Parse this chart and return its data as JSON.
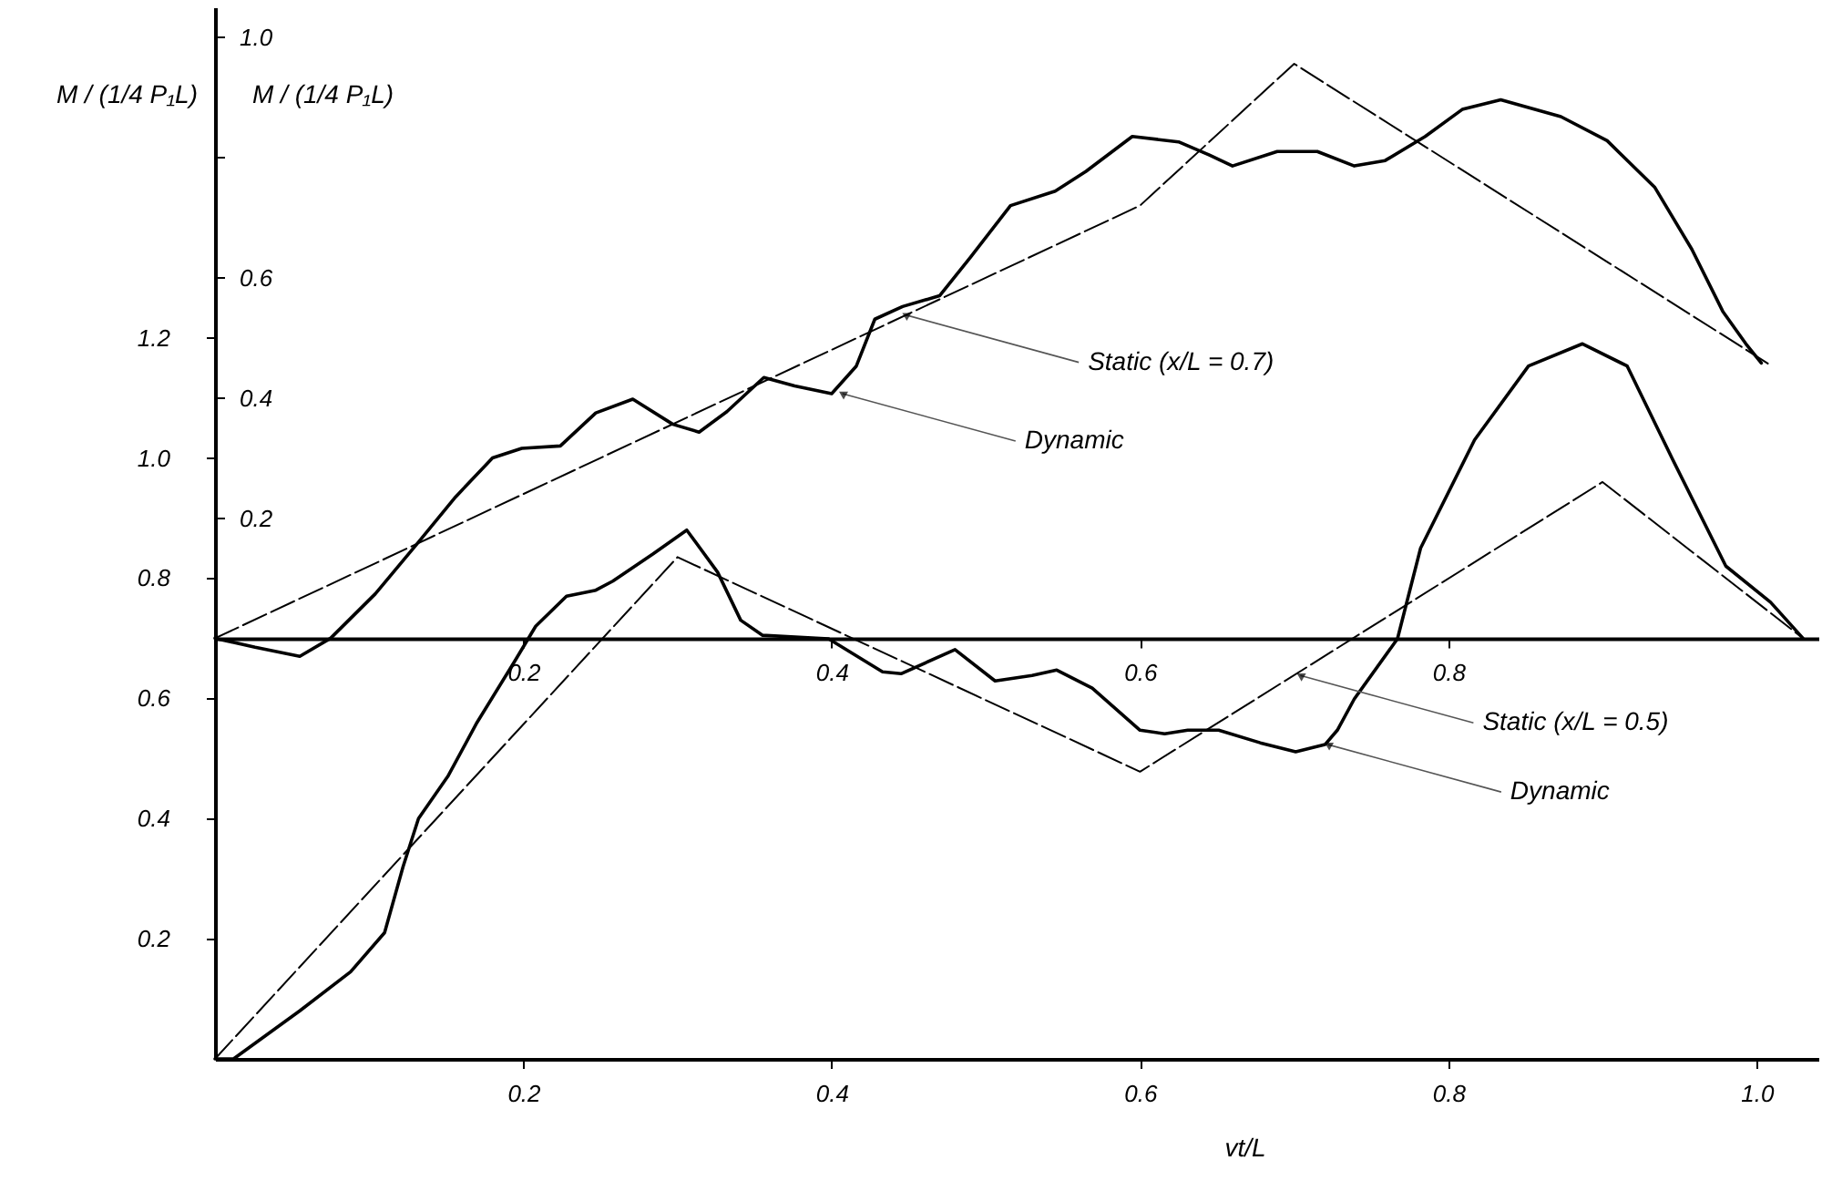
{
  "chart_data": {
    "type": "line",
    "xlabel": "vt/L",
    "ylabel": "M / (1/4 P₁L)",
    "y2label": "M / (1/4 P₁L)",
    "xlim": [
      0,
      1.04
    ],
    "xticks": [
      0.2,
      0.4,
      0.6,
      0.8,
      {
        "value": 1.0,
        "label": "1.0"
      }
    ],
    "x2lim": [
      0,
      1.04
    ],
    "x2ticks": [
      0.2,
      0.4,
      0.6,
      0.8
    ],
    "ylim": [
      0,
      1.75
    ],
    "yticks": [
      0.2,
      0.4,
      0.6,
      0.8,
      {
        "value": 1.0,
        "label": "1.0"
      },
      1.2
    ],
    "y2lim": [
      -0.7,
      1.05
    ],
    "y2ticks": [
      0.2,
      0.4,
      0.6,
      {
        "value": 0.8,
        "label": null
      },
      {
        "value": 1.0,
        "label": "1.0"
      }
    ],
    "grid": false,
    "legend": false,
    "marker": "none",
    "series": [
      {
        "color": "#000000",
        "line_style": "dashed",
        "x": [
          0,
          0.3,
          0.6,
          0.9,
          1.03
        ],
        "values": [
          0,
          0.835,
          0.478,
          0.96,
          0.7
        ]
      },
      {
        "color": "#000000",
        "line_style": "solid",
        "x": [
          0,
          0.012,
          0.055,
          0.088,
          0.11,
          0.122,
          0.132,
          0.151,
          0.17,
          0.194,
          0.208,
          0.228,
          0.247,
          0.258,
          0.284,
          0.306,
          0.326,
          0.341,
          0.355,
          0.398,
          0.433,
          0.445,
          0.48,
          0.506,
          0.53,
          0.546,
          0.569,
          0.6,
          0.616,
          0.631,
          0.651,
          0.678,
          0.701,
          0.72,
          0.728,
          0.739,
          0.767,
          0.782,
          0.817,
          0.852,
          0.887,
          0.916,
          0.945,
          0.98,
          1.009,
          1.03
        ],
        "values": [
          0,
          0,
          0.08,
          0.145,
          0.21,
          0.32,
          0.4,
          0.47,
          0.56,
          0.66,
          0.72,
          0.77,
          0.78,
          0.795,
          0.84,
          0.88,
          0.81,
          0.73,
          0.705,
          0.699,
          0.644,
          0.641,
          0.681,
          0.629,
          0.638,
          0.647,
          0.617,
          0.547,
          0.541,
          0.547,
          0.547,
          0.526,
          0.511,
          0.523,
          0.547,
          0.599,
          0.699,
          0.85,
          1.03,
          1.153,
          1.19,
          1.153,
          1.0,
          0.82,
          0.76,
          0.7
        ]
      },
      {
        "color": "#000000",
        "line_style": "dashed",
        "axis": "y2",
        "x": [
          0,
          0.6,
          0.7,
          1.008
        ],
        "values": [
          0,
          0.72,
          0.956,
          0.456
        ]
      },
      {
        "color": "#000000",
        "line_style": "solid",
        "axis": "y2",
        "x": [
          0,
          0.026,
          0.055,
          0.075,
          0.104,
          0.132,
          0.156,
          0.18,
          0.199,
          0.224,
          0.247,
          0.271,
          0.297,
          0.314,
          0.332,
          0.356,
          0.376,
          0.4,
          0.416,
          0.428,
          0.446,
          0.47,
          0.49,
          0.516,
          0.545,
          0.565,
          0.595,
          0.625,
          0.645,
          0.66,
          0.689,
          0.715,
          0.739,
          0.759,
          0.785,
          0.809,
          0.834,
          0.873,
          0.903,
          0.934,
          0.958,
          0.978,
          0.993,
          1.003
        ],
        "values": [
          0,
          -0.015,
          -0.03,
          0,
          0.074,
          0.16,
          0.235,
          0.3,
          0.316,
          0.32,
          0.375,
          0.398,
          0.356,
          0.343,
          0.377,
          0.434,
          0.42,
          0.407,
          0.453,
          0.531,
          0.552,
          0.57,
          0.634,
          0.72,
          0.744,
          0.777,
          0.835,
          0.826,
          0.804,
          0.786,
          0.81,
          0.81,
          0.786,
          0.795,
          0.835,
          0.88,
          0.896,
          0.868,
          0.828,
          0.75,
          0.647,
          0.544,
          0.49,
          0.458
        ]
      }
    ],
    "annotations": [
      {
        "text": "Static (x/L = 0.7)",
        "x": 0.448,
        "y": 1.238
      },
      {
        "text": "Dynamic",
        "x": 0.407,
        "y": 1.107
      },
      {
        "text": "Static (x/L = 0.5)",
        "x": 0.704,
        "y": 0.638
      },
      {
        "text": "Dynamic",
        "x": 0.722,
        "y": 0.523
      }
    ]
  }
}
